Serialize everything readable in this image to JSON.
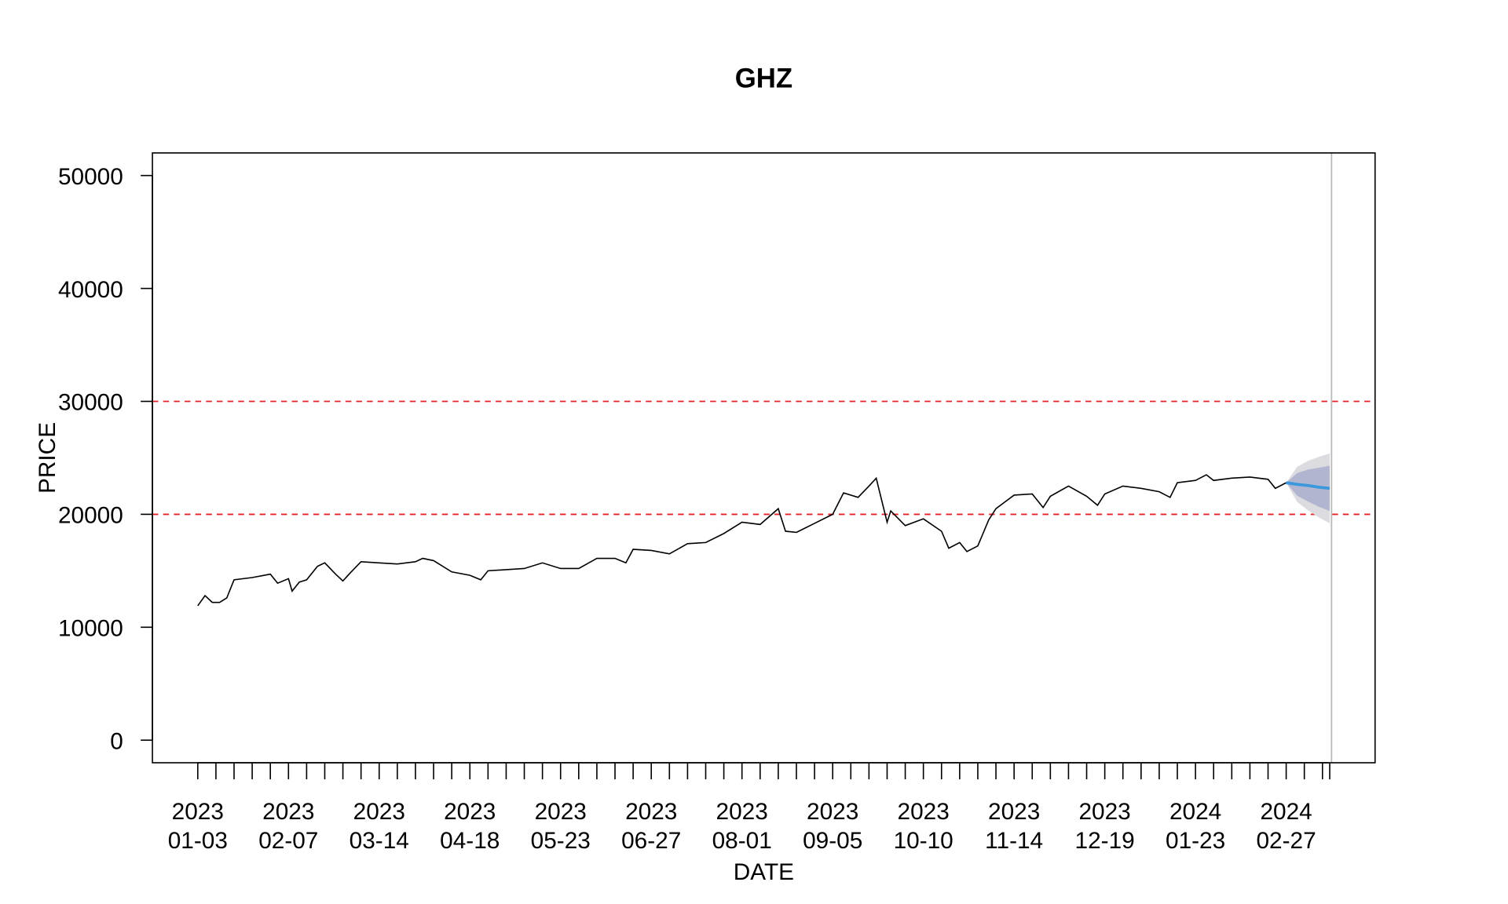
{
  "chart_data": {
    "type": "line",
    "title": "GHZ",
    "xlabel": "DATE",
    "ylabel": "PRICE",
    "x": [
      0,
      2,
      4,
      6,
      8,
      10,
      15,
      20,
      22,
      25,
      26,
      28,
      30,
      33,
      35,
      38,
      40,
      42,
      45,
      50,
      55,
      60,
      62,
      65,
      70,
      75,
      78,
      80,
      85,
      90,
      95,
      100,
      105,
      110,
      115,
      118,
      120,
      125,
      130,
      135,
      140,
      145,
      150,
      155,
      160,
      162,
      165,
      170,
      175,
      178,
      182,
      185,
      187,
      190,
      191,
      195,
      200,
      205,
      207,
      210,
      212,
      215,
      218,
      220,
      225,
      230,
      233,
      235,
      240,
      245,
      248,
      250,
      255,
      260,
      265,
      268,
      270,
      275,
      278,
      280,
      285,
      290,
      295,
      297,
      300
    ],
    "values": [
      11900,
      12800,
      12200,
      12200,
      12600,
      14200,
      14400,
      14700,
      13900,
      14300,
      13200,
      14000,
      14200,
      15400,
      15700,
      14700,
      14100,
      14800,
      15800,
      15700,
      15600,
      15800,
      16100,
      15900,
      14900,
      14600,
      14200,
      15000,
      15100,
      15200,
      15700,
      15200,
      15200,
      16100,
      16100,
      15700,
      16900,
      16800,
      16500,
      17400,
      17500,
      18300,
      19300,
      19100,
      20500,
      18500,
      18400,
      19200,
      20000,
      21900,
      21500,
      22500,
      23200,
      19300,
      20300,
      19000,
      19600,
      18500,
      17000,
      17500,
      16700,
      17200,
      19500,
      20500,
      21700,
      21800,
      20600,
      21600,
      22500,
      21600,
      20800,
      21800,
      22500,
      22300,
      22000,
      21500,
      22800,
      23000,
      23500,
      23000,
      23200,
      23300,
      23100,
      22300,
      22800
    ],
    "color": "#000000",
    "forecast": {
      "x": [
        300,
        303,
        306,
        309,
        312
      ],
      "mean": [
        22800,
        22650,
        22550,
        22400,
        22300
      ],
      "lo80": [
        22800,
        21650,
        21140,
        20670,
        20300
      ],
      "hi80": [
        22800,
        23650,
        23960,
        24130,
        24300
      ],
      "lo95": [
        22800,
        21100,
        20360,
        19720,
        19200
      ],
      "hi95": [
        22800,
        24200,
        24740,
        25080,
        25400
      ],
      "color": "#3a98dc",
      "band80_color": "#b2b5d0",
      "band95_color": "#dcdce0"
    },
    "hlines": [
      20000,
      30000
    ],
    "hline_color": "#e8202a",
    "vline": 312.5,
    "vline_color": "#bbbbbb",
    "xlim": [
      -12.5,
      324.5
    ],
    "ylim": [
      -2000,
      52000
    ],
    "yticks": [
      0,
      10000,
      20000,
      30000,
      40000,
      50000
    ],
    "xticks": [
      {
        "value": 0,
        "label": "2023\n01-03"
      },
      {
        "value": 25,
        "label": "2023\n02-07"
      },
      {
        "value": 50,
        "label": "2023\n03-14"
      },
      {
        "value": 75,
        "label": "2023\n04-18"
      },
      {
        "value": 100,
        "label": "2023\n05-23"
      },
      {
        "value": 125,
        "label": "2023\n06-27"
      },
      {
        "value": 150,
        "label": "2023\n08-01"
      },
      {
        "value": 175,
        "label": "2023\n09-05"
      },
      {
        "value": 200,
        "label": "2023\n10-10"
      },
      {
        "value": 225,
        "label": "2023\n11-14"
      },
      {
        "value": 250,
        "label": "2023\n12-19"
      },
      {
        "value": 275,
        "label": "2024\n01-23"
      },
      {
        "value": 300,
        "label": "2024\n02-27"
      }
    ],
    "x_minor_ticks": [
      5,
      10,
      15,
      20,
      30,
      35,
      40,
      45,
      55,
      60,
      65,
      70,
      80,
      85,
      90,
      95,
      105,
      110,
      115,
      120,
      130,
      135,
      140,
      145,
      155,
      160,
      165,
      170,
      180,
      185,
      190,
      195,
      205,
      210,
      215,
      220,
      230,
      235,
      240,
      245,
      255,
      260,
      265,
      270,
      280,
      285,
      290,
      295,
      305,
      310,
      312
    ]
  }
}
